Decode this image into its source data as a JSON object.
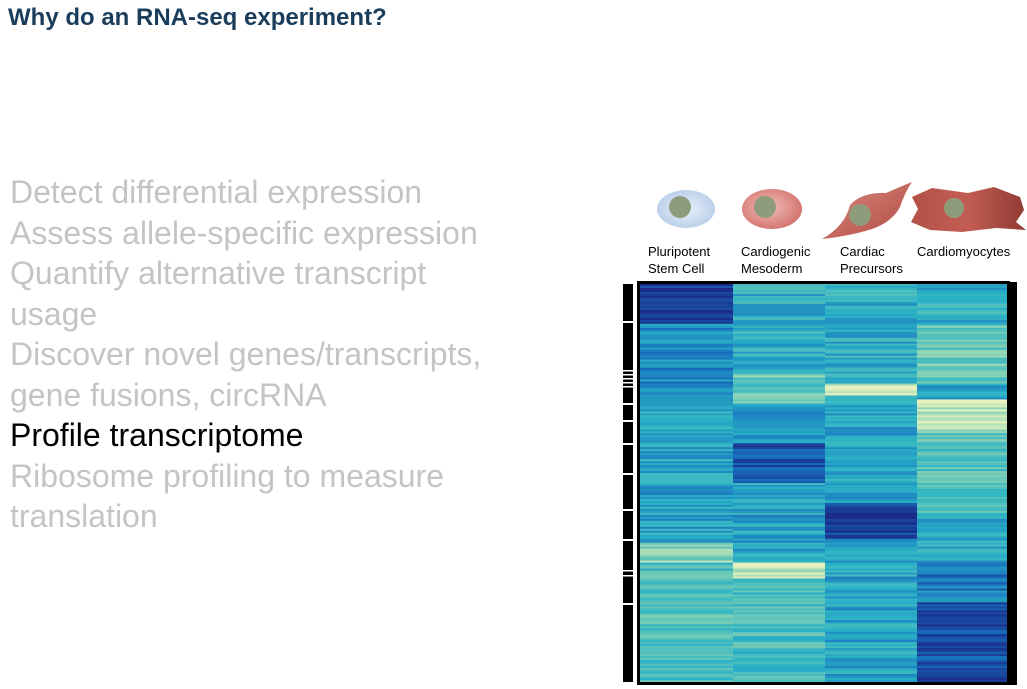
{
  "slide": {
    "title": "Why do an RNA-seq experiment?",
    "bullets": [
      {
        "line1": "Detect differential expression",
        "line2": ""
      },
      {
        "line1": "Assess allele-specific expression",
        "line2": ""
      },
      {
        "line1": "Quantify alternative transcript",
        "line2": "usage"
      },
      {
        "line1": "Discover novel genes/transcripts,",
        "line2": "gene fusions, circRNA"
      },
      {
        "line1": "Profile transcriptome",
        "line2": ""
      },
      {
        "line1": "Ribosome profiling to measure",
        "line2": "translation"
      }
    ],
    "highlighted_bullet": 4
  },
  "figure": {
    "cell_stages": [
      {
        "line1": "Pluripotent",
        "line2": "Stem Cell"
      },
      {
        "line1": "Cardiogenic",
        "line2": "Mesoderm"
      },
      {
        "line1": "Cardiac",
        "line2": "Precursors"
      },
      {
        "line1": "Cardiomyocytes",
        "line2": ""
      }
    ],
    "colors": {
      "title": "#1b3d5c",
      "bullet_dim": "#c4c4c4",
      "bullet_active": "#000000",
      "heat_high": "#1a2f8a",
      "heat_mid": "#2ab1c6",
      "heat_low": "#e8f2bf"
    }
  }
}
